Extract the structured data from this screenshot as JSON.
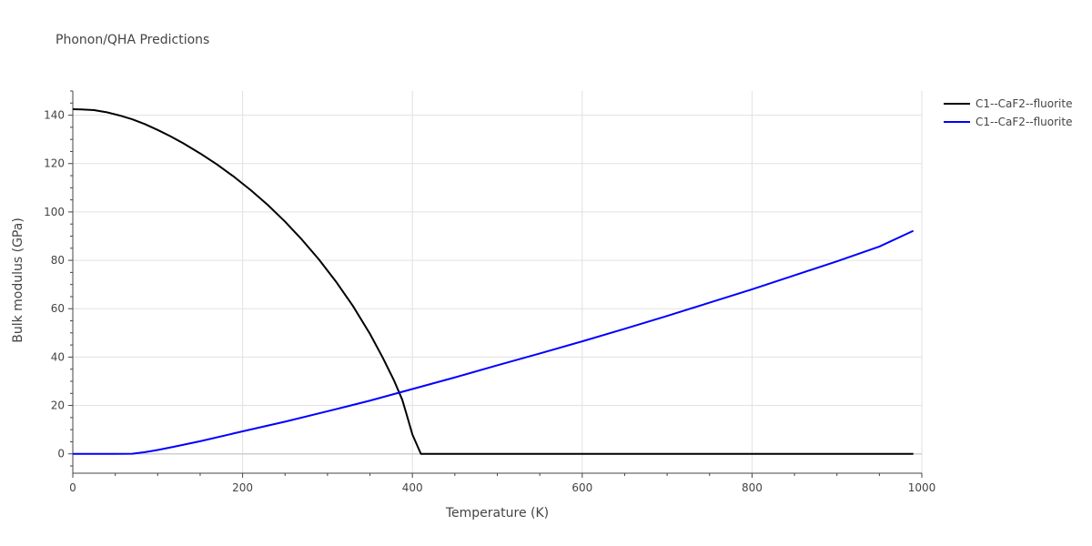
{
  "chart_data": {
    "type": "line",
    "title": "Phonon/QHA Predictions",
    "xlabel": "Temperature (K)",
    "ylabel": "Bulk modulus (GPa)",
    "xlim": [
      0,
      1000
    ],
    "ylim": [
      -8,
      150
    ],
    "xticks": [
      0,
      200,
      400,
      600,
      800,
      1000
    ],
    "yticks": [
      0,
      20,
      40,
      60,
      80,
      100,
      120,
      140
    ],
    "grid": true,
    "legend_position": "top-right",
    "series": [
      {
        "name": "C1--CaF2--fluorite",
        "color": "#000000",
        "x": [
          0,
          10,
          25,
          40,
          55,
          70,
          85,
          100,
          115,
          130,
          150,
          170,
          190,
          210,
          230,
          250,
          270,
          290,
          310,
          330,
          350,
          365,
          378,
          388,
          393,
          400,
          410,
          500,
          600,
          700,
          800,
          900,
          990
        ],
        "y": [
          142.5,
          142.4,
          142.1,
          141.2,
          139.9,
          138.3,
          136.3,
          133.9,
          131.3,
          128.4,
          124.2,
          119.6,
          114.5,
          108.9,
          102.8,
          96.0,
          88.5,
          80.3,
          71.2,
          61.1,
          49.6,
          39.8,
          30.6,
          22.4,
          16.5,
          8.0,
          0,
          0,
          0,
          0,
          0,
          0,
          0
        ]
      },
      {
        "name": "C1--CaF2--fluorite",
        "color": "#0000ff",
        "x": [
          0,
          30,
          50,
          70,
          85,
          100,
          120,
          150,
          200,
          250,
          300,
          350,
          400,
          450,
          500,
          550,
          600,
          650,
          700,
          750,
          800,
          850,
          900,
          950,
          990
        ],
        "y": [
          0,
          0,
          0,
          0.05,
          0.7,
          1.6,
          3.0,
          5.2,
          9.3,
          13.3,
          17.6,
          22.0,
          26.8,
          31.6,
          36.6,
          41.5,
          46.5,
          51.7,
          57.0,
          62.5,
          68.0,
          73.8,
          79.6,
          85.7,
          92.2
        ]
      }
    ]
  }
}
